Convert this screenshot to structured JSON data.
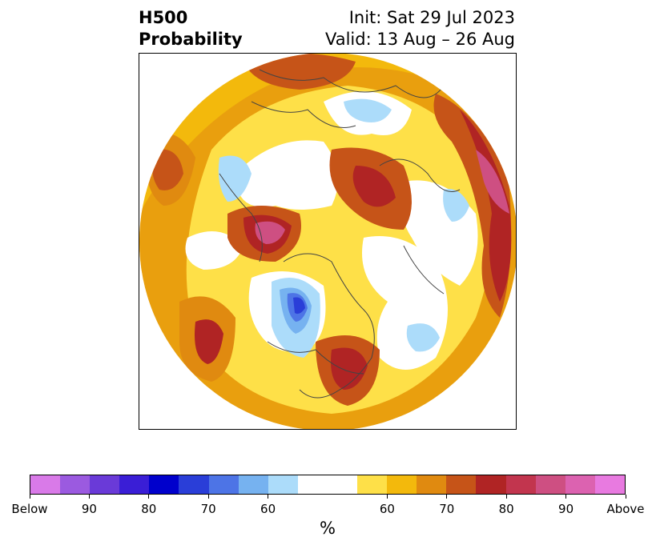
{
  "header": {
    "title_line1": "H500",
    "title_line2": "Probability",
    "init_text": "Init: Sat 29 Jul 2023",
    "valid_text": "Valid: 13 Aug – 26 Aug"
  },
  "colorbar": {
    "colors": [
      "#d97ae8",
      "#9b5ae0",
      "#6a3ad8",
      "#3a1ed6",
      "#0000cc",
      "#2a3ed8",
      "#4d74e6",
      "#76b2f0",
      "#acdcfa",
      "#ffffff",
      "#ffffff",
      "#fee048",
      "#f3b90c",
      "#e08a10",
      "#c65418",
      "#b02424",
      "#c2354e",
      "#ce4f82",
      "#dc62b0",
      "#e87ae0"
    ],
    "tick_labels": [
      "Below",
      "90",
      "80",
      "70",
      "60",
      "60",
      "70",
      "80",
      "90",
      "Above"
    ],
    "unit": "%"
  },
  "map": {
    "projection": "north-polar-stereographic",
    "domain_shape": "circle",
    "legend_categories": [
      "below",
      "neutral",
      "above"
    ]
  }
}
